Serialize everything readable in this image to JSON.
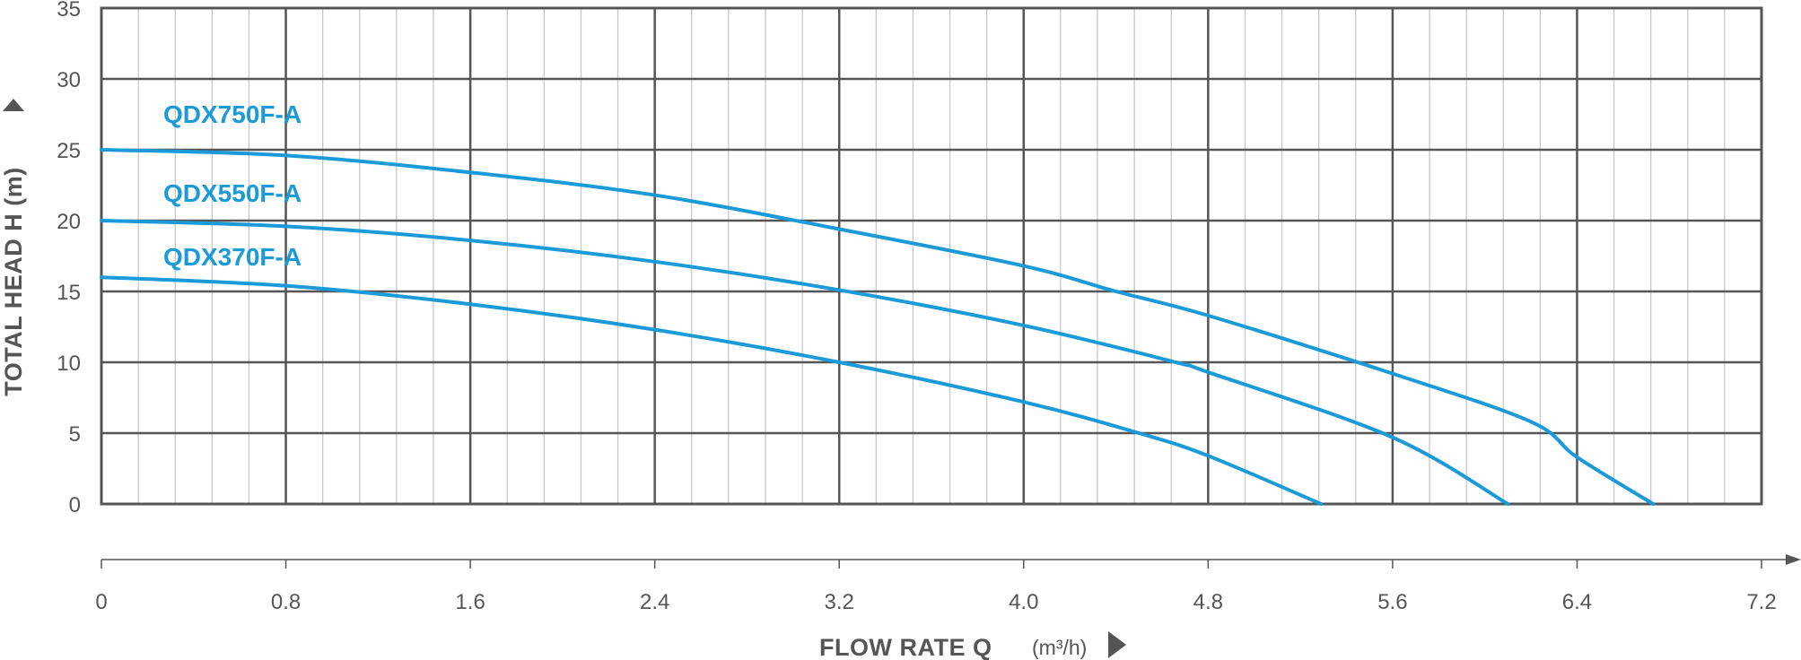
{
  "chart_data": {
    "type": "line",
    "xlabel": "FLOW RATE Q",
    "x_unit": "(m³/h)",
    "ylabel": "TOTAL HEAD H (m)",
    "xlim": [
      0,
      7.2
    ],
    "ylim": [
      0,
      35
    ],
    "x_ticks": [
      "0",
      "0.8",
      "1.6",
      "2.4",
      "3.2",
      "4.0",
      "4.8",
      "5.6",
      "6.4",
      "7.2"
    ],
    "y_ticks": [
      "35",
      "30",
      "25",
      "20",
      "15",
      "10",
      "5",
      "0"
    ],
    "grid": true,
    "line_color": "#1a9ad8",
    "series": [
      {
        "name": "QDX750F-A",
        "points": [
          [
            0,
            25
          ],
          [
            0.8,
            24.6
          ],
          [
            1.6,
            23.4
          ],
          [
            2.4,
            21.8
          ],
          [
            3.2,
            19.4
          ],
          [
            4.0,
            16.8
          ],
          [
            4.4,
            15.0
          ],
          [
            4.8,
            13.3
          ],
          [
            5.6,
            9.2
          ],
          [
            6.2,
            5.8
          ],
          [
            6.4,
            3.3
          ],
          [
            6.73,
            0
          ]
        ]
      },
      {
        "name": "QDX550F-A",
        "points": [
          [
            0,
            20
          ],
          [
            0.8,
            19.6
          ],
          [
            1.6,
            18.6
          ],
          [
            2.4,
            17.1
          ],
          [
            3.2,
            15.1
          ],
          [
            4.0,
            12.6
          ],
          [
            4.66,
            10.0
          ],
          [
            4.8,
            9.3
          ],
          [
            5.6,
            4.7
          ],
          [
            6.1,
            0
          ]
        ]
      },
      {
        "name": "QDX370F-A",
        "points": [
          [
            0,
            16
          ],
          [
            0.8,
            15.4
          ],
          [
            1.6,
            14.1
          ],
          [
            2.4,
            12.3
          ],
          [
            3.2,
            10.0
          ],
          [
            4.0,
            7.2
          ],
          [
            4.5,
            5.0
          ],
          [
            4.8,
            3.4
          ],
          [
            5.29,
            0
          ]
        ]
      }
    ]
  }
}
